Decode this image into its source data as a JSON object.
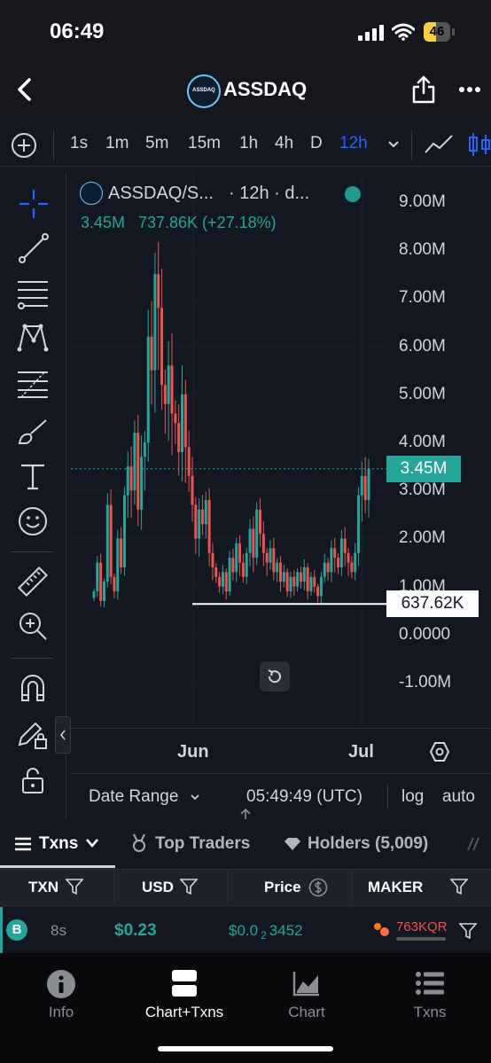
{
  "status_bar": {
    "time": "06:49",
    "battery": "46"
  },
  "header": {
    "title": "ASSDAQ",
    "logo_text": "ASSDAQ"
  },
  "timeframes": [
    "1s",
    "1m",
    "5m",
    "15m",
    "1h",
    "4h",
    "D",
    "12h"
  ],
  "active_timeframe": "12h",
  "legend": {
    "symbol": "ASSDAQ/S...",
    "interval": "· 12h · d...",
    "price": "3.45M",
    "change": "737.86K (+27.18%)"
  },
  "price_axis": {
    "labels": [
      "9.00M",
      "8.00M",
      "7.00M",
      "6.00M",
      "5.00M",
      "4.00M",
      "3.00M",
      "2.00M",
      "1.00M",
      "0.0000",
      "-1.00M"
    ],
    "current_label": "3.45M",
    "hline_label": "637.62K"
  },
  "time_axis": {
    "labels": [
      "Jun",
      "Jul"
    ]
  },
  "chart_bottom": {
    "date_range": "Date Range",
    "time": "05:49:49 (UTC)",
    "log": "log",
    "auto": "auto"
  },
  "chart_data": {
    "type": "candlestick",
    "ylim": [
      -1500000,
      9500000
    ],
    "current_price": 3450000,
    "horizontal_line": 637620,
    "x_labels": [
      "Jun",
      "Jul"
    ],
    "closes": [
      900000,
      1500000,
      700000,
      1100000,
      2700000,
      1200000,
      900000,
      2000000,
      1400000,
      2900000,
      3500000,
      3000000,
      4200000,
      2600000,
      3700000,
      4000000,
      6200000,
      5500000,
      7500000,
      6800000,
      5200000,
      4800000,
      5600000,
      4600000,
      4400000,
      3800000,
      5000000,
      3900000,
      3300000,
      2700000,
      2000000,
      2600000,
      2300000,
      2800000,
      1700000,
      1400000,
      1200000,
      1000000,
      1300000,
      900000,
      1600000,
      1300000,
      1900000,
      1500000,
      1200000,
      1700000,
      2200000,
      1600000,
      2600000,
      2100000,
      1700000,
      1500000,
      1800000,
      1300000,
      1500000,
      1100000,
      1300000,
      900000,
      1200000,
      1000000,
      1300000,
      1100000,
      1400000,
      900000,
      1200000,
      1000000,
      800000,
      1200000,
      1500000,
      1300000,
      1800000,
      1600000,
      1400000,
      2000000,
      1700000,
      1500000,
      1300000,
      1700000,
      2900000,
      3300000,
      2800000,
      3450000
    ]
  },
  "tabs": {
    "txns": "Txns",
    "top_traders": "Top Traders",
    "holders": "Holders (5,009)"
  },
  "table": {
    "headers": {
      "txn": "TXN",
      "usd": "USD",
      "price": "Price",
      "maker": "MAKER"
    },
    "row": {
      "type": "B",
      "age": "8s",
      "usd": "$0.23",
      "price": "$0.0",
      "price_sub": "2",
      "price_tail": "3452",
      "maker": "763KQR"
    }
  },
  "nav": {
    "info": "Info",
    "chart_txns": "Chart+Txns",
    "chart": "Chart",
    "txns": "Txns"
  },
  "colors": {
    "up": "#26a69a",
    "down": "#ef5350",
    "accent": "#2962ff",
    "bg": "#131722"
  }
}
